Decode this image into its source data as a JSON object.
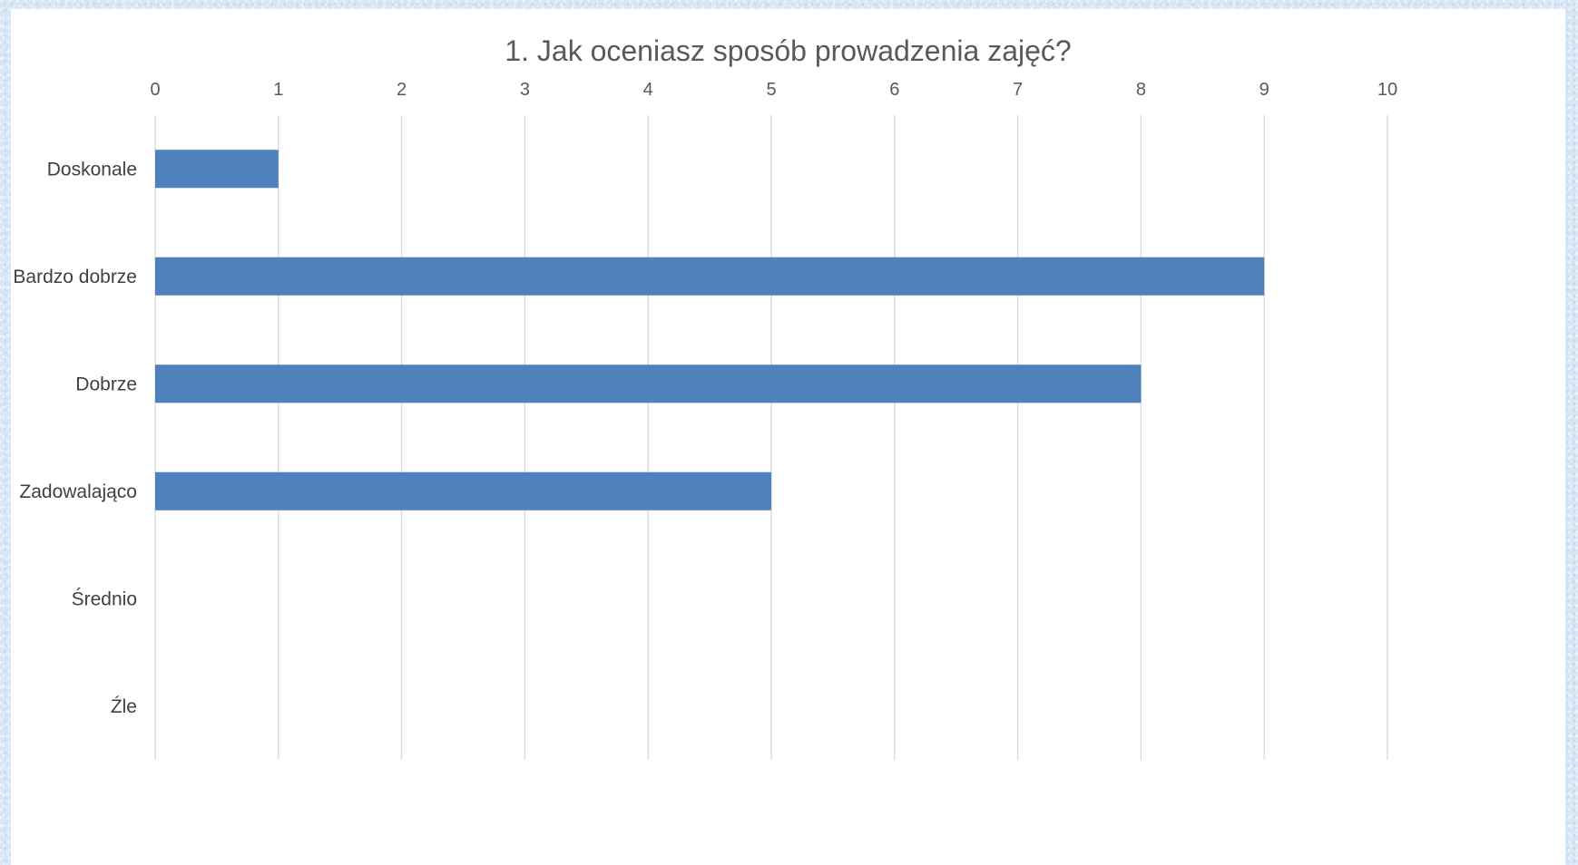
{
  "chart_data": {
    "type": "bar",
    "orientation": "horizontal",
    "title": "1. Jak oceniasz sposób prowadzenia zajęć?",
    "categories": [
      "Doskonale",
      "Bardzo dobrze",
      "Dobrze",
      "Zadowalająco",
      "Średnio",
      "Źle"
    ],
    "values": [
      1,
      9,
      8,
      5,
      0,
      0
    ],
    "xlim": [
      0,
      10
    ],
    "x_ticks": [
      "0",
      "1",
      "2",
      "3",
      "4",
      "5",
      "6",
      "7",
      "8",
      "9",
      "10"
    ],
    "xlabel": "",
    "ylabel": "",
    "grid": true,
    "x_axis_position": "top",
    "legend": "none",
    "bar_color": "#4f81bd",
    "grid_color": "#d9d9d9",
    "background_color": "#ffffff"
  }
}
